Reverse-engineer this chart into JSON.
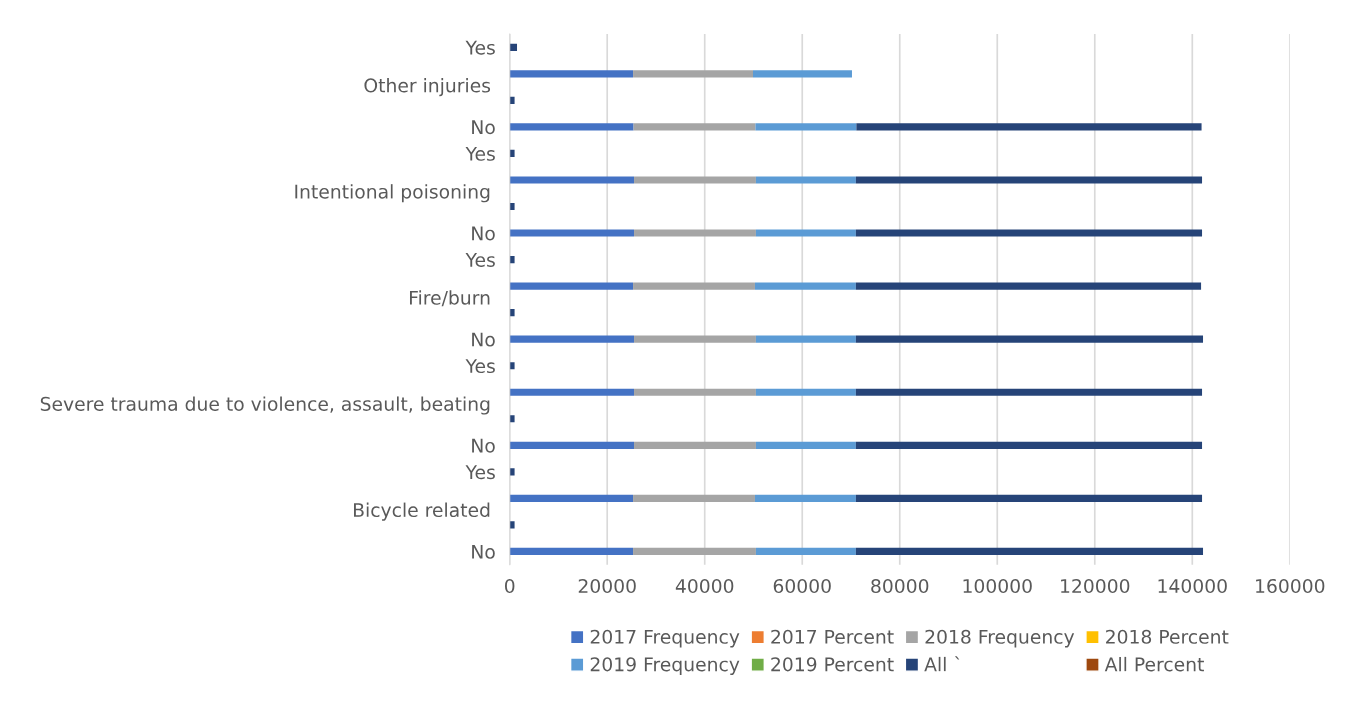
{
  "chart_data": {
    "type": "bar",
    "orientation": "horizontal",
    "stacked": true,
    "categories": [
      "Yes",
      null,
      null,
      "No",
      "Yes",
      null,
      null,
      "No",
      "Yes",
      null,
      null,
      "No",
      "Yes",
      null,
      null,
      "No",
      "Yes",
      null,
      null,
      "No"
    ],
    "annotations": [
      "Other injuries",
      "Intentional poisoning",
      "Fire/burn",
      "Severe trauma due to violence, assault, beating",
      "Bicycle related"
    ],
    "series": [
      {
        "name": "2017 Frequency",
        "color": "#4472c4",
        "values": [
          null,
          25300,
          null,
          25400,
          null,
          25500,
          null,
          25500,
          null,
          25300,
          null,
          25500,
          null,
          25500,
          null,
          25500,
          null,
          25300,
          null,
          25300
        ]
      },
      {
        "name": "2017 Percent",
        "color": "#ed7d31",
        "values": [
          null,
          null,
          null,
          null,
          null,
          null,
          null,
          null,
          null,
          null,
          null,
          null,
          null,
          null,
          null,
          null,
          null,
          null,
          null,
          null
        ]
      },
      {
        "name": "2018 Frequency",
        "color": "#a5a5a5",
        "values": [
          null,
          24600,
          null,
          25000,
          null,
          25000,
          null,
          25000,
          null,
          25000,
          null,
          25000,
          null,
          25000,
          null,
          25000,
          null,
          25000,
          null,
          25200
        ]
      },
      {
        "name": "2018 Percent",
        "color": "#ffc000",
        "values": [
          null,
          null,
          null,
          null,
          null,
          null,
          null,
          null,
          null,
          null,
          null,
          null,
          null,
          null,
          null,
          null,
          null,
          null,
          null,
          null
        ]
      },
      {
        "name": "2019 Frequency",
        "color": "#5b9bd5",
        "values": [
          null,
          20300,
          null,
          20700,
          null,
          20500,
          null,
          20500,
          null,
          20700,
          null,
          20500,
          null,
          20500,
          null,
          20500,
          null,
          20700,
          null,
          20500
        ]
      },
      {
        "name": "2019 Percent",
        "color": "#70ad47",
        "values": [
          null,
          null,
          null,
          null,
          null,
          null,
          null,
          null,
          null,
          null,
          null,
          null,
          null,
          null,
          null,
          null,
          null,
          null,
          null,
          null
        ]
      },
      {
        "name": "All `",
        "color": "#264478",
        "values": [
          1500,
          null,
          1000,
          70800,
          1000,
          71000,
          1000,
          71000,
          1000,
          70800,
          1000,
          71200,
          1000,
          71000,
          1000,
          71000,
          1000,
          71000,
          1000,
          71200
        ]
      },
      {
        "name": "All Percent",
        "color": "#9e480e",
        "values": [
          null,
          null,
          null,
          null,
          null,
          null,
          null,
          null,
          null,
          null,
          null,
          null,
          null,
          null,
          null,
          null,
          null,
          null,
          null,
          null
        ]
      }
    ],
    "xlim": [
      0,
      160000
    ],
    "xticks": [
      0,
      20000,
      40000,
      60000,
      80000,
      100000,
      120000,
      140000,
      160000
    ],
    "grid": "x",
    "legend": "bottom"
  }
}
